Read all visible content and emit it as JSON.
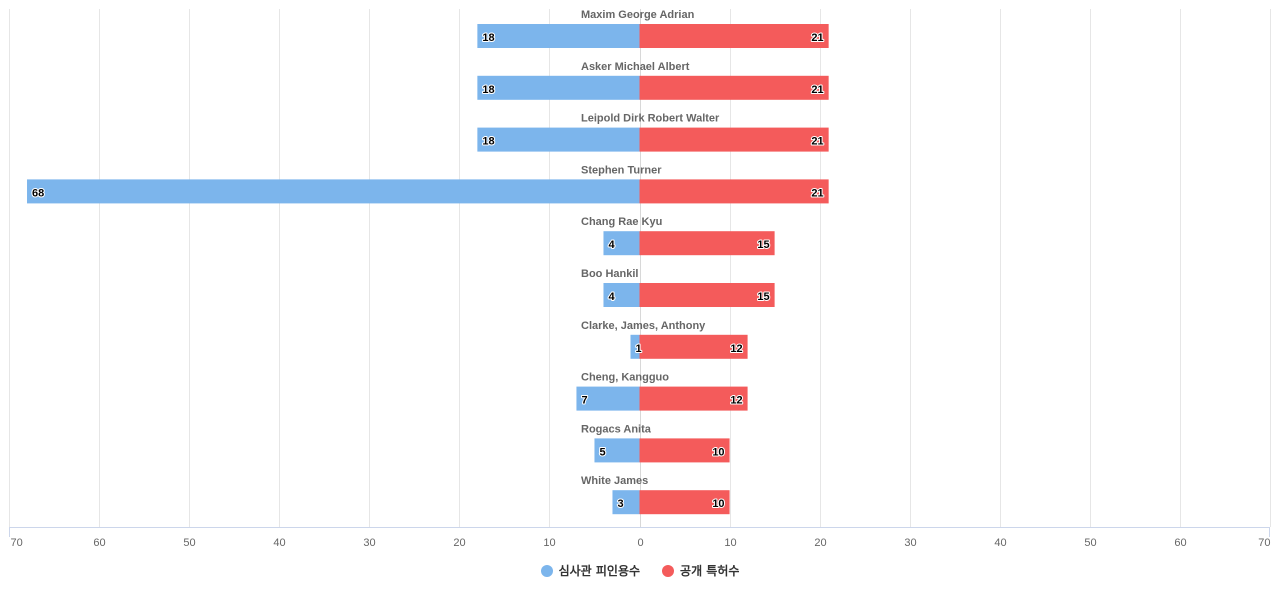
{
  "chart_data": {
    "type": "bar",
    "orientation": "horizontal-diverging",
    "categories": [
      "Maxim George Adrian",
      "Asker Michael Albert",
      "Leipold Dirk Robert Walter",
      "Stephen Turner",
      "Chang Rae Kyu",
      "Boo Hankil",
      "Clarke, James, Anthony",
      "Cheng, Kangguo",
      "Rogacs Anita",
      "White James"
    ],
    "series": [
      {
        "name": "심사관 피인용수",
        "color": "#7cb5ec",
        "direction": "left",
        "values": [
          18,
          18,
          18,
          68,
          4,
          4,
          1,
          7,
          5,
          3
        ]
      },
      {
        "name": "공개 특허수",
        "color": "#f45b5b",
        "direction": "right",
        "values": [
          21,
          21,
          21,
          21,
          15,
          15,
          12,
          12,
          10,
          10
        ]
      }
    ],
    "xlim": [
      -70,
      70
    ],
    "x_ticks": [
      -70,
      -60,
      -50,
      -40,
      -30,
      -20,
      -10,
      0,
      10,
      20,
      30,
      40,
      50,
      60,
      70
    ],
    "tick_labels": [
      "70",
      "60",
      "50",
      "40",
      "30",
      "20",
      "10",
      "0",
      "10",
      "20",
      "30",
      "40",
      "50",
      "60",
      "70"
    ],
    "grid": true,
    "legend_position": "bottom-center"
  }
}
